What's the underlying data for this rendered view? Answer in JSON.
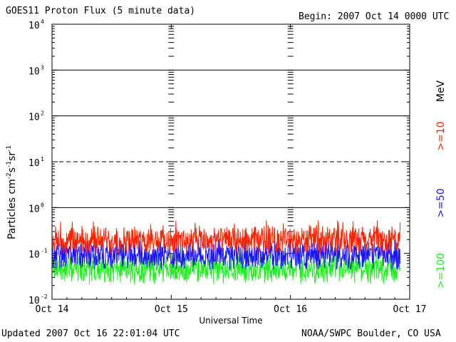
{
  "header": {
    "title": "GOES11 Proton Flux (5 minute data)",
    "begin": "Begin: 2007 Oct 14 0000 UTC"
  },
  "footer": {
    "updated": "Updated 2007 Oct 16 22:01:04 UTC",
    "source": "NOAA/SWPC Boulder, CO USA"
  },
  "colors": {
    "ge10": "#ff2200",
    "ge50": "#1a14ff",
    "ge100": "#22ee22",
    "frame": "#000000",
    "background": "#ffffff"
  },
  "chart_data": {
    "type": "line",
    "title": "GOES11 Proton Flux (5 minute data)",
    "xlabel": "Universal Time",
    "ylabel": "Particles cm⁻²s⁻¹sr⁻¹",
    "ylabel_parts": [
      "Particles cm",
      "-2",
      "s",
      "-1",
      "sr",
      "-1"
    ],
    "y_scale": "log",
    "ylim": [
      0.01,
      10000
    ],
    "y_ticks": [
      {
        "base": "10",
        "exp": "-2"
      },
      {
        "base": "10",
        "exp": "-1"
      },
      {
        "base": "10",
        "exp": "0"
      },
      {
        "base": "10",
        "exp": "1"
      },
      {
        "base": "10",
        "exp": "2"
      },
      {
        "base": "10",
        "exp": "3"
      },
      {
        "base": "10",
        "exp": "4"
      }
    ],
    "x_ticks": [
      "Oct 14",
      "Oct 15",
      "Oct 16",
      "Oct 17"
    ],
    "xlim_days": [
      0,
      3
    ],
    "grid": {
      "solid_decades": [
        1,
        100,
        1000
      ],
      "dashed_decades": [
        10
      ],
      "dashed_level": 0.1
    },
    "units_label": "MeV",
    "legend_placement": "right",
    "series": [
      {
        "name": ">=10",
        "color": "#ff2200",
        "typical": 0.19,
        "min": 0.1,
        "max": 0.8
      },
      {
        "name": ">=50",
        "color": "#1a14ff",
        "typical": 0.09,
        "min": 0.045,
        "max": 0.2
      },
      {
        "name": ">=100",
        "color": "#22ee22",
        "typical": 0.045,
        "min": 0.022,
        "max": 0.1
      }
    ],
    "data_end_day": 2.92
  }
}
